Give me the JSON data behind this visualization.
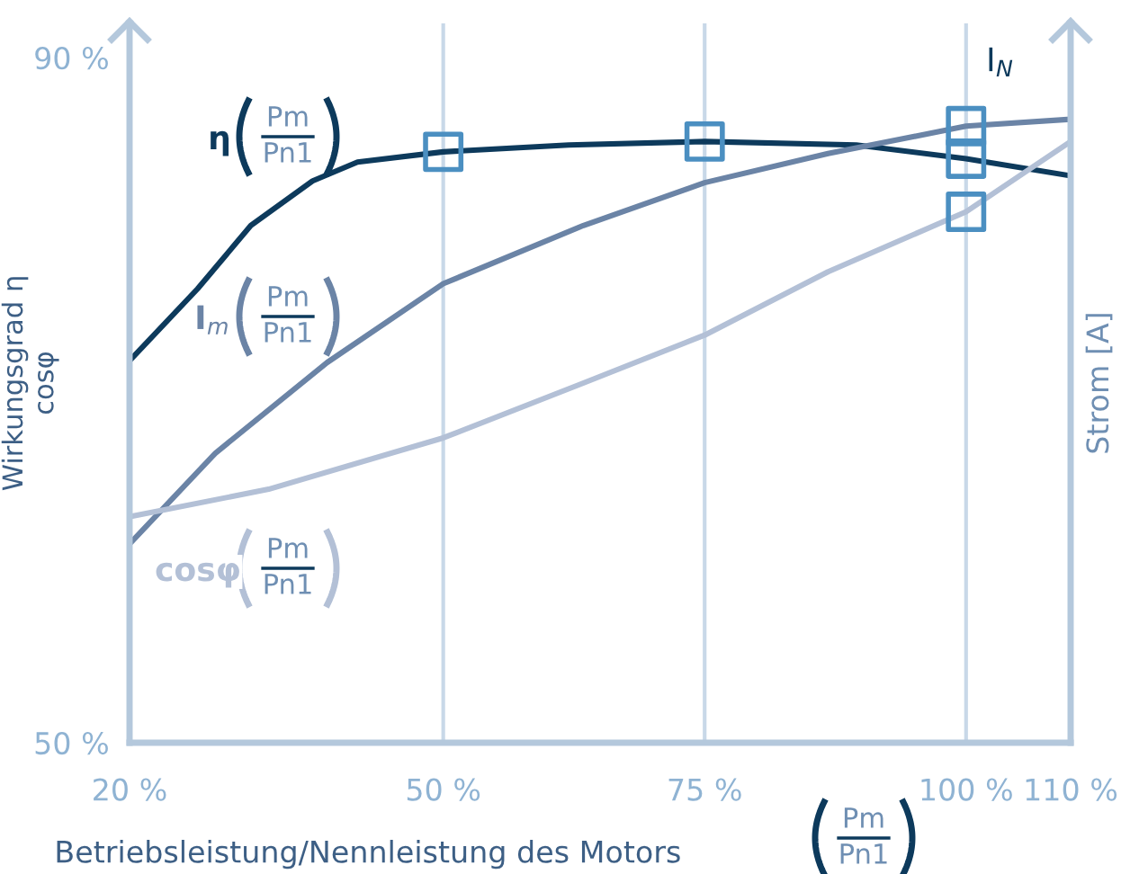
{
  "chart_data": {
    "type": "line",
    "xlabel": "Betriebsleistung/Nennleistung des Motors",
    "ylabel": "Wirkungsgrad η\ncosφ",
    "y2label": "Strom [A]",
    "xlim": [
      20,
      110
    ],
    "ylim": [
      50,
      92
    ],
    "xticks": [
      {
        "value": 20,
        "label": "20 %"
      },
      {
        "value": 50,
        "label": "50 %"
      },
      {
        "value": 75,
        "label": "75 %"
      },
      {
        "value": 100,
        "label": "100 %"
      },
      {
        "value": 110,
        "label": "110 %"
      }
    ],
    "yticks": [
      {
        "value": 50,
        "label": "50 %"
      },
      {
        "value": 90,
        "label": "90 %"
      }
    ],
    "grid": "x",
    "legend": "top left",
    "line_style": "solid",
    "series": [
      {
        "name": "η",
        "color": "#0d3a5c",
        "x": [
          20,
          26.5,
          31.6,
          37.5,
          41.8,
          50,
          62,
          75,
          89.5,
          100,
          110
        ],
        "values": [
          72.3,
          76.5,
          80.2,
          82.8,
          83.9,
          84.5,
          84.9,
          85.1,
          84.9,
          84.1,
          83.1
        ]
      },
      {
        "name": "I$_{m}$",
        "color": "#6b84a6",
        "x": [
          20,
          28.2,
          38.9,
          50,
          63.4,
          75,
          86.8,
          100,
          110
        ],
        "values": [
          61.6,
          66.9,
          72.2,
          76.8,
          80.2,
          82.7,
          84.4,
          86.0,
          86.4
        ]
      },
      {
        "name": "cosφ",
        "color": "#b3c0d6",
        "x": [
          20,
          33.3,
          50,
          63.4,
          75,
          86.8,
          100,
          110
        ],
        "values": [
          63.2,
          64.8,
          67.8,
          71.0,
          73.8,
          77.5,
          81.0,
          85.1
        ]
      },
      {
        "type": "scatter",
        "color": "#4b8fc1",
        "marker": "square",
        "x": [
          50,
          75,
          100,
          100,
          100
        ],
        "values": [
          84.5,
          85.1,
          86.0,
          84.1,
          81.0
        ]
      }
    ],
    "annotations": [
      {
        "text": "I$_{N}$",
        "x": 100,
        "y": 86.0
      },
      "Pm",
      "Pn1",
      "Pm",
      "Pn1",
      "Pm",
      "Pn1",
      "Pm",
      "Pn1"
    ]
  }
}
